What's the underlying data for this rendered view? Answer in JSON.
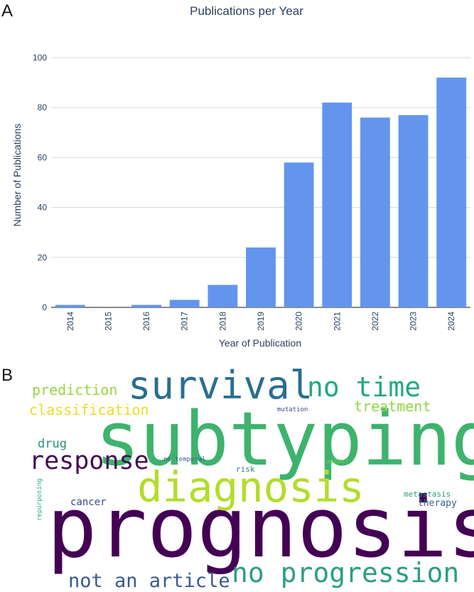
{
  "panel_a_label": "A",
  "panel_b_label": "B",
  "bar_color": "#6495ed",
  "chart_data": {
    "type": "bar",
    "title": "Publications per Year",
    "xlabel": "Year of Publication",
    "ylabel": "Number of Publications",
    "categories": [
      "2014",
      "2015",
      "2016",
      "2017",
      "2018",
      "2019",
      "2020",
      "2021",
      "2022",
      "2023",
      "2024"
    ],
    "values": [
      1,
      0,
      1,
      3,
      9,
      24,
      58,
      82,
      76,
      77,
      92
    ],
    "ylim": [
      0,
      100
    ],
    "yticks": [
      0,
      20,
      40,
      60,
      80,
      100
    ],
    "grid": true,
    "legend": "none"
  },
  "wordcloud": {
    "words": [
      {
        "text": "prognosis",
        "color": "#440154"
      },
      {
        "text": "subtyping",
        "color": "#3eb36d"
      },
      {
        "text": "diagnosis",
        "color": "#b2dd2c"
      },
      {
        "text": "survival",
        "color": "#2a6e8e"
      },
      {
        "text": "no progression",
        "color": "#2c9e83"
      },
      {
        "text": "no time",
        "color": "#23a883"
      },
      {
        "text": "response",
        "color": "#440d53"
      },
      {
        "text": "not an article",
        "color": "#3a5b8c"
      },
      {
        "text": "classification",
        "color": "#eddc25"
      },
      {
        "text": "prediction",
        "color": "#99d43f"
      },
      {
        "text": "treatment",
        "color": "#8fd744"
      },
      {
        "text": "drug",
        "color": "#21917a"
      },
      {
        "text": "cancer",
        "color": "#3b4a87"
      },
      {
        "text": "therapy",
        "color": "#36628d"
      },
      {
        "text": "metastasis",
        "color": "#2a9c80"
      },
      {
        "text": "mutation",
        "color": "#404788"
      },
      {
        "text": "no temporal",
        "color": "#3b5e8c"
      },
      {
        "text": "risk",
        "color": "#2f7f8e"
      },
      {
        "text": "aspect",
        "color": "#6ccd5a"
      },
      {
        "text": "repurposing",
        "color": "#2bb07f"
      }
    ]
  }
}
